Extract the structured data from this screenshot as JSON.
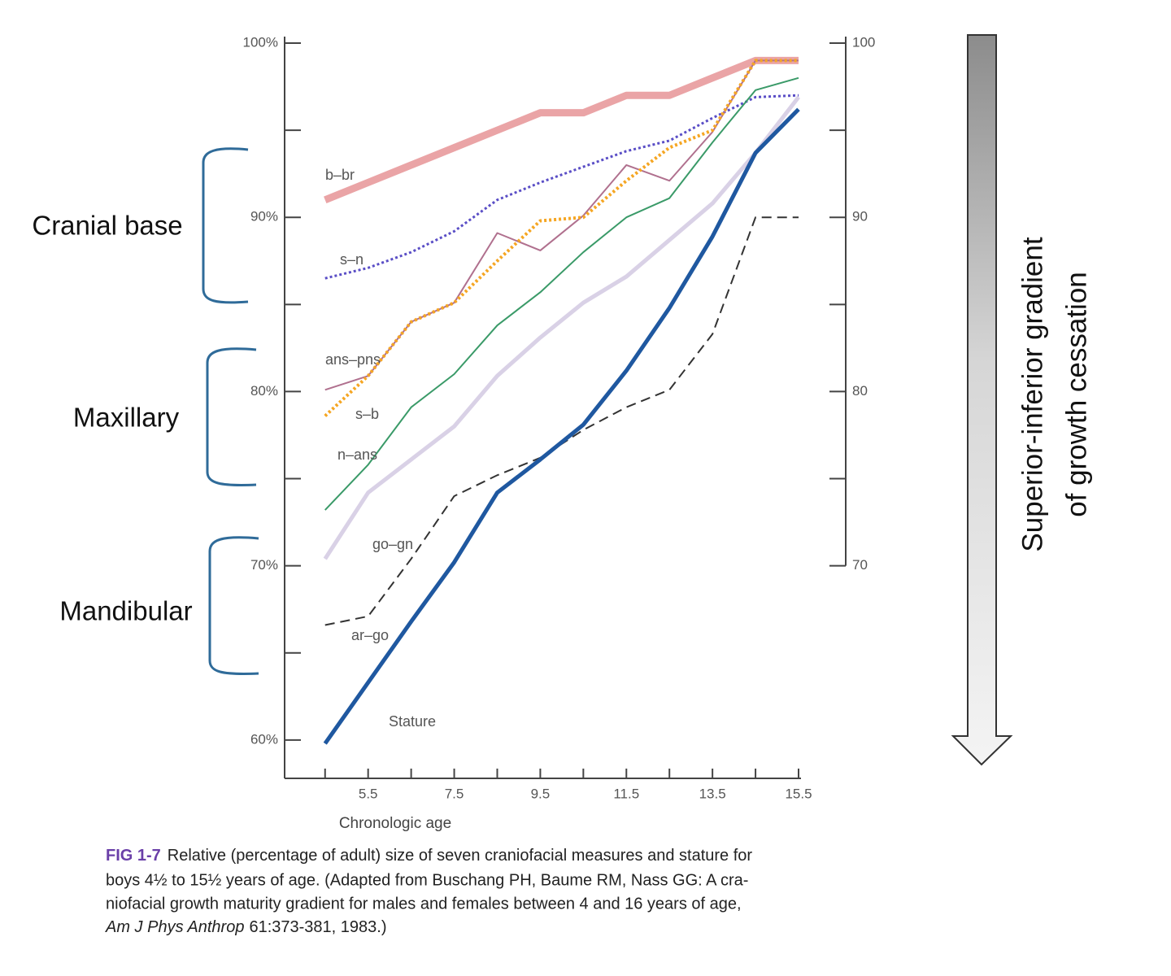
{
  "chart_data": {
    "type": "line",
    "x_label": "Chronologic age",
    "x": [
      4.5,
      5.5,
      6.5,
      7.5,
      8.5,
      9.5,
      10.5,
      11.5,
      12.5,
      13.5,
      14.5,
      15.5
    ],
    "xlim": [
      3.56,
      15.5
    ],
    "xticks": [
      5.5,
      7.5,
      9.5,
      11.5,
      13.5,
      15.5
    ],
    "minor_xticks": [
      4.5,
      6.5,
      8.5,
      10.5,
      12.5,
      14.5
    ],
    "ylim": [
      57.8,
      100
    ],
    "yticks": [
      {
        "value": 60,
        "label": "60%"
      },
      {
        "value": 70,
        "label": "70%"
      },
      {
        "value": 80,
        "label": "80%"
      },
      {
        "value": 90,
        "label": "90%"
      },
      {
        "value": 100,
        "label": "100%"
      }
    ],
    "minor_yticks": [
      65,
      75,
      85,
      95
    ],
    "y2lim": [
      70,
      100
    ],
    "y2ticks": [
      70,
      80,
      90,
      100
    ],
    "minor_y2ticks": [
      75,
      85,
      95
    ],
    "series": [
      {
        "name": "b–br",
        "color": "#eaa4a6",
        "line_style": "solid",
        "values": [
          91,
          92,
          93,
          94,
          95,
          96,
          96,
          97,
          97,
          98,
          99,
          99
        ]
      },
      {
        "name": "s–n",
        "color": "#5a4ec6",
        "line_style": "dotted",
        "values": [
          86.5,
          87.1,
          88.0,
          89.2,
          91.0,
          92.0,
          92.9,
          93.8,
          94.4,
          95.7,
          96.9,
          97.0
        ]
      },
      {
        "name": "ans–pns",
        "color": "#b0708e",
        "line_style": "solid",
        "values": [
          80.1,
          80.9,
          84.0,
          85.1,
          89.1,
          88.1,
          90.1,
          93.0,
          92.1,
          94.9,
          99.0,
          99.0
        ]
      },
      {
        "name": "s–b",
        "color": "#f5a623",
        "line_style": "dotted",
        "values": [
          78.6,
          80.9,
          84.0,
          85.1,
          87.5,
          89.8,
          90.0,
          92.1,
          94.0,
          95.0,
          99.0,
          99.0
        ]
      },
      {
        "name": "n–ans",
        "color": "#3a9a68",
        "line_style": "solid",
        "values": [
          73.2,
          75.8,
          79.1,
          81.0,
          83.8,
          85.7,
          88.0,
          90.0,
          91.1,
          94.3,
          97.3,
          98.0
        ]
      },
      {
        "name": "go–gn",
        "color": "#d9d1e6",
        "line_style": "solid",
        "values": [
          70.4,
          74.2,
          76.1,
          78.0,
          80.9,
          83.1,
          85.1,
          86.6,
          88.7,
          90.8,
          93.7,
          96.9
        ]
      },
      {
        "name": "ar–go",
        "color": "#333333",
        "line_style": "dashed",
        "values": [
          66.6,
          67.1,
          70.4,
          74.0,
          75.2,
          76.2,
          77.8,
          79.1,
          80.1,
          83.3,
          90.0,
          90.0
        ]
      },
      {
        "name": "Stature",
        "color": "#1f58a0",
        "line_style": "solid",
        "values": [
          59.8,
          63.3,
          66.8,
          70.2,
          74.2,
          76.1,
          78.1,
          81.2,
          84.8,
          88.9,
          93.7,
          96.2
        ]
      }
    ],
    "groups": [
      "Cranial base",
      "Maxillary",
      "Mandibular"
    ],
    "gradient_label": [
      "Superior-inferior gradient",
      "of growth cessation"
    ],
    "caption": {
      "label": "FIG 1-7",
      "lines": [
        "Relative (percentage of adult) size of seven craniofacial measures and stature for",
        "boys 4½ to 15½ years of age. (Adapted from Buschang PH, Baume RM, Nass GG: A cra-",
        "niofacial growth maturity gradient for males and females between 4 and 16 years of age,"
      ],
      "journal": "Am J Phys Anthrop",
      "citation": "61:373-381, 1983.)"
    }
  }
}
